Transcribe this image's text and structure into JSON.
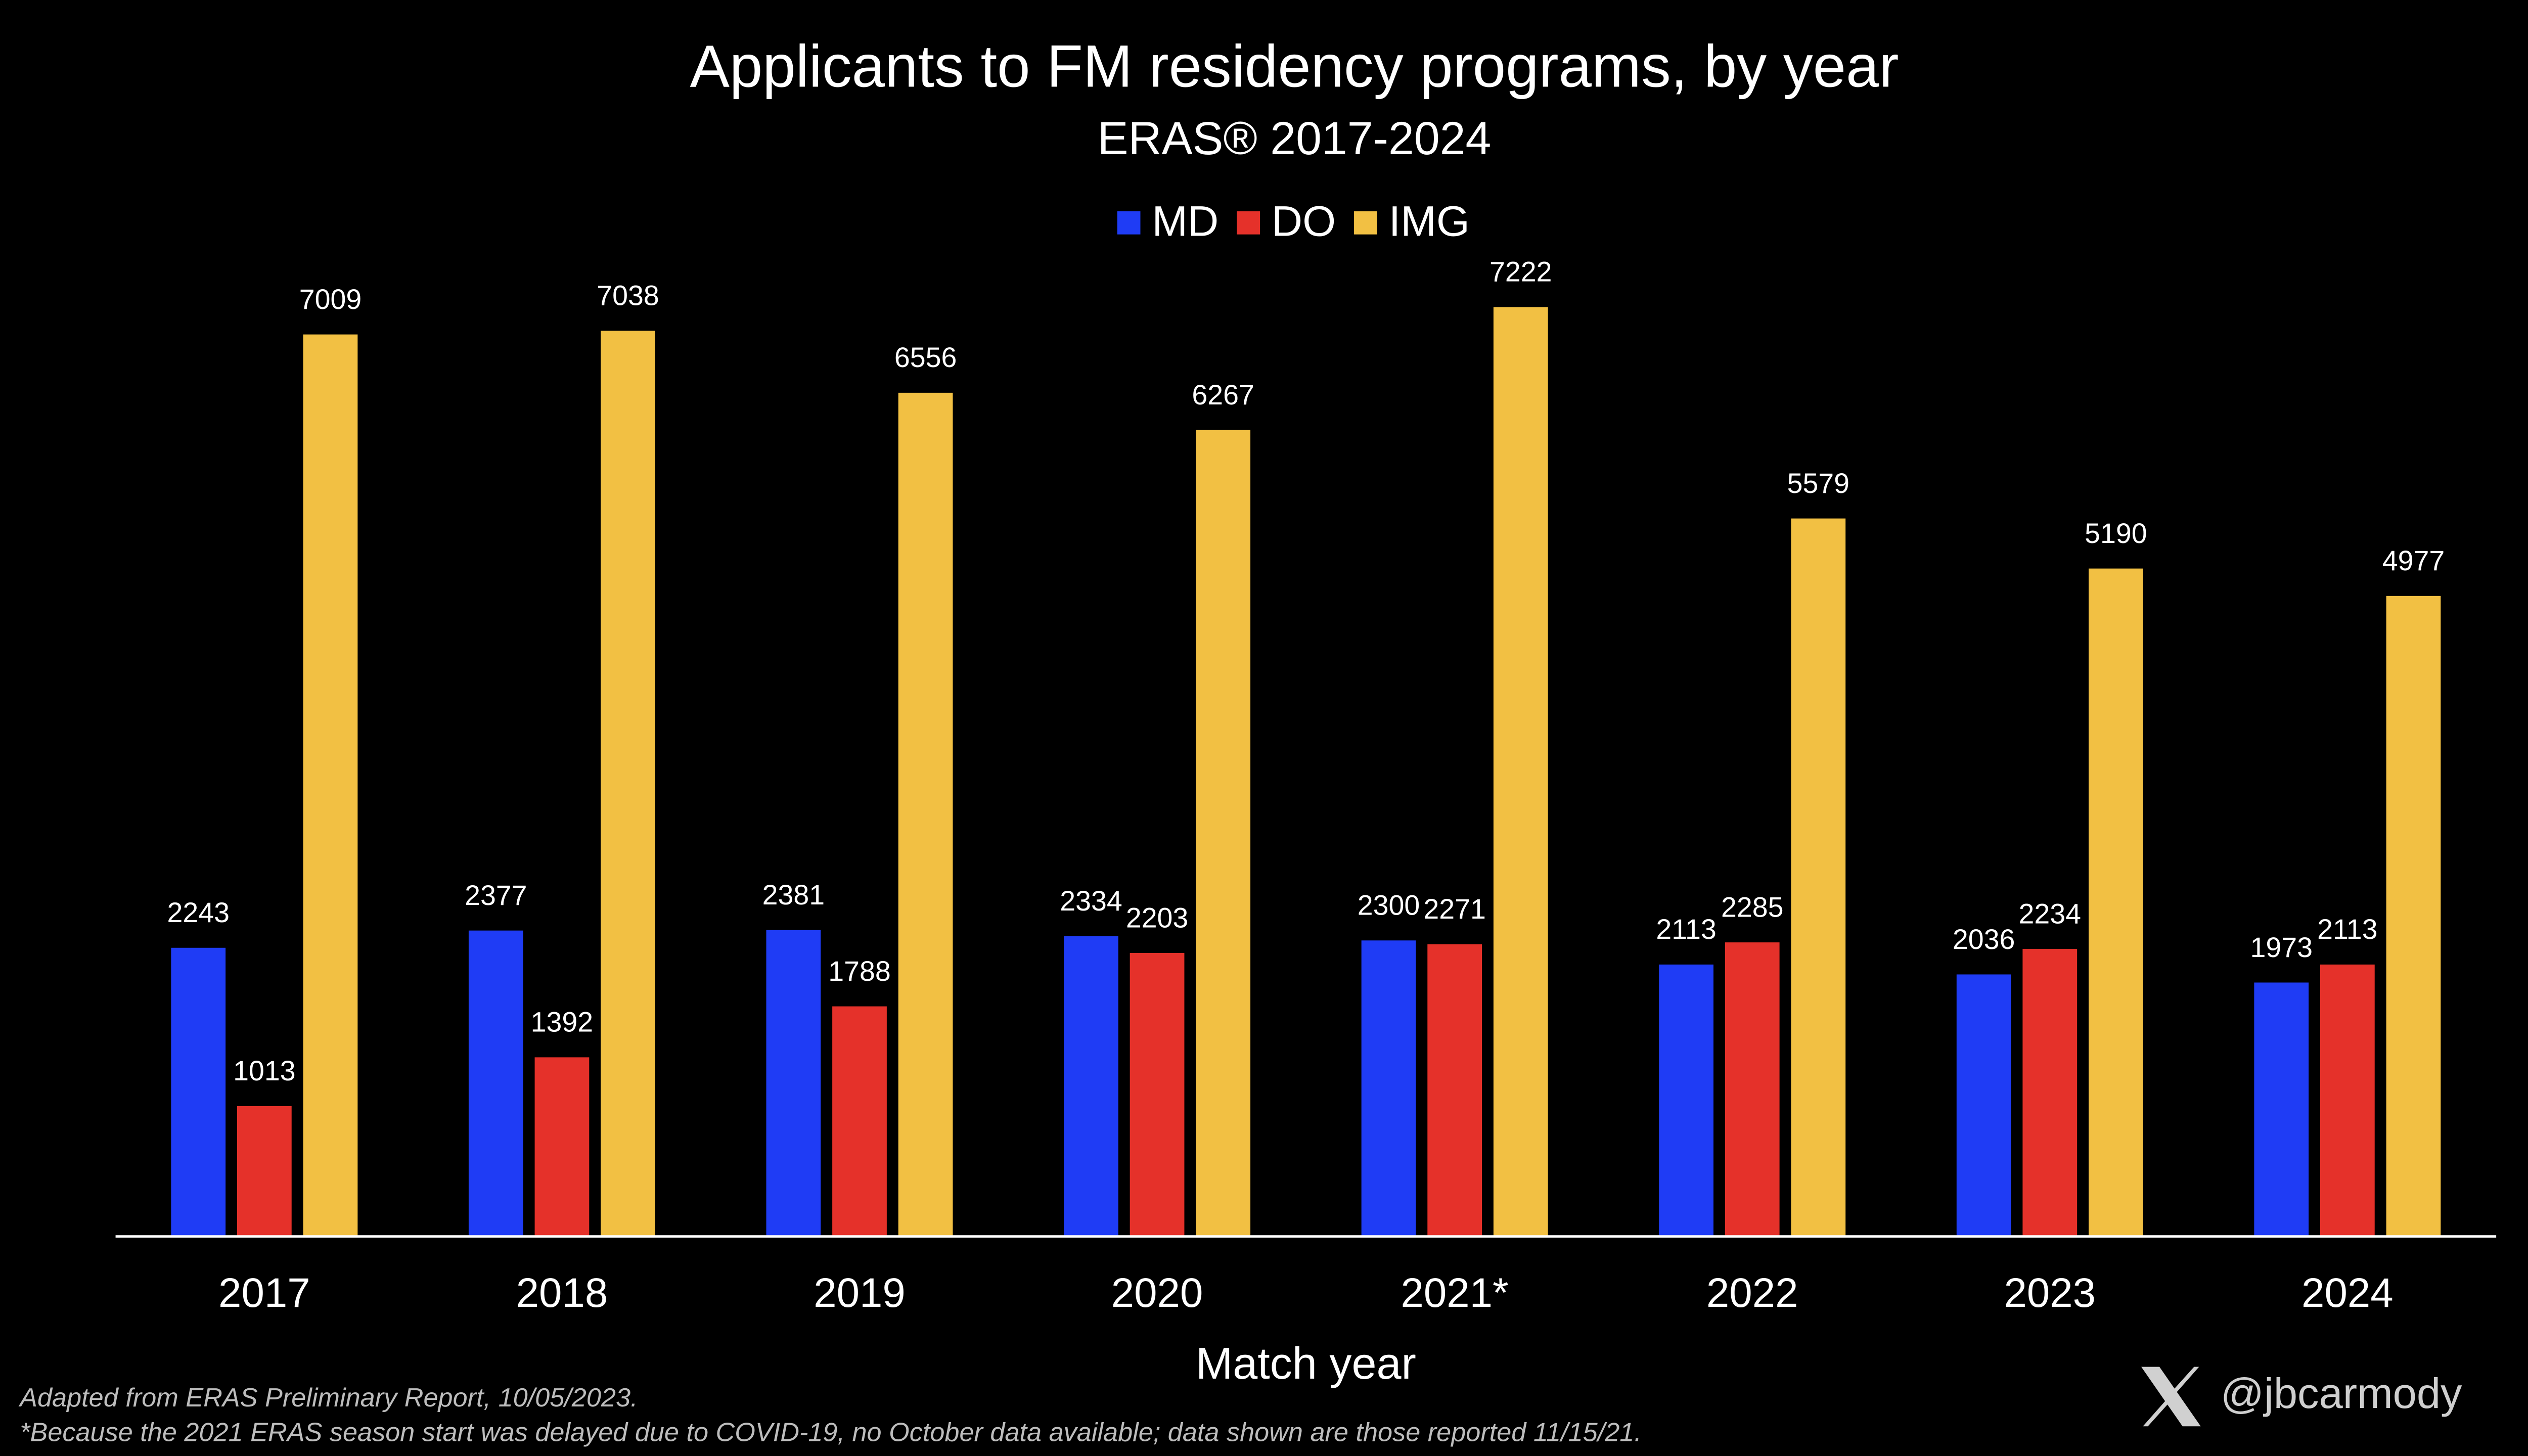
{
  "chart_data": {
    "type": "bar",
    "title": "Applicants to FM residency programs, by year",
    "subtitle": "ERAS® 2017-2024",
    "xlabel": "Match year",
    "categories": [
      "2017",
      "2018",
      "2019",
      "2020",
      "2021*",
      "2022",
      "2023",
      "2024"
    ],
    "series": [
      {
        "name": "MD",
        "color": "#1f3cf5",
        "values": [
          2243,
          2377,
          2381,
          2334,
          2300,
          2113,
          2036,
          1973
        ]
      },
      {
        "name": "DO",
        "color": "#e5312a",
        "values": [
          1013,
          1392,
          1788,
          2203,
          2271,
          2285,
          2234,
          2113
        ]
      },
      {
        "name": "IMG",
        "color": "#f2c043",
        "values": [
          7009,
          7038,
          6556,
          6267,
          7222,
          5579,
          5190,
          4977
        ]
      }
    ],
    "legend": "top",
    "source": "Adapted from ERAS Preliminary Report, 10/05/2023.",
    "footnote": "*Because the 2021 ERAS season start was delayed due to COVID-19, no October data available; data shown are those reported 11/15/21.",
    "handle": "@jbcarmody"
  }
}
